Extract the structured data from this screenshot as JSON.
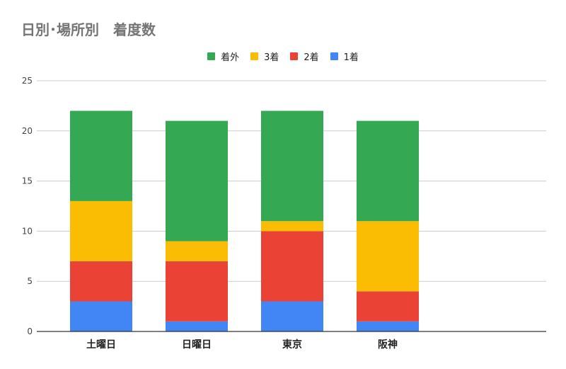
{
  "chart_data": {
    "type": "bar",
    "stacked": true,
    "title": "日別･場所別　着度数",
    "categories": [
      "土曜日",
      "日曜日",
      "東京",
      "阪神"
    ],
    "series": [
      {
        "name": "1着",
        "values": [
          3,
          1,
          3,
          1
        ],
        "color": "#4285f4"
      },
      {
        "name": "2着",
        "values": [
          4,
          6,
          7,
          3
        ],
        "color": "#ea4335"
      },
      {
        "name": "3着",
        "values": [
          6,
          2,
          1,
          7
        ],
        "color": "#fbbc04"
      },
      {
        "name": "着外",
        "values": [
          9,
          12,
          11,
          10
        ],
        "color": "#34a853"
      }
    ],
    "legend_order": [
      "着外",
      "3着",
      "2着",
      "1着"
    ],
    "ylim": [
      0,
      25
    ],
    "yticks": [
      0,
      5,
      10,
      15,
      20,
      25
    ],
    "xlabel": "",
    "ylabel": "",
    "grid": true,
    "legend_position": "top"
  }
}
